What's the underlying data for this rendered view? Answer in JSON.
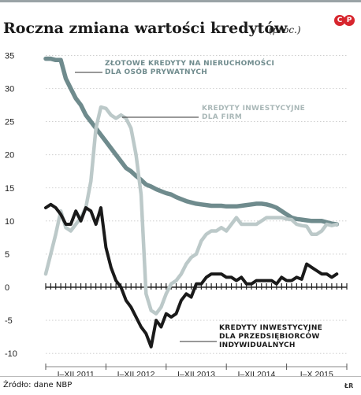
{
  "header": {
    "title": "Roczna zmiana wartości kredytów",
    "unit": "(proc.)",
    "logo": "CP",
    "logo_color": "#d7262e"
  },
  "footer": {
    "source": "Źródło: dane NBP",
    "initials": "ŁR"
  },
  "chart_data": {
    "type": "line",
    "ylim": [
      -12,
      36
    ],
    "y_ticks": [
      35,
      30,
      25,
      20,
      15,
      10,
      5,
      0,
      -5,
      -10
    ],
    "x_range": [
      0,
      60
    ],
    "x_tick_labels": [
      "I–XII 2011",
      "I–XII 2012",
      "I–XII 2013",
      "I–XII 2014",
      "I–X 2015"
    ],
    "grid": true,
    "series": [
      {
        "name": "Złotowe kredyty na nieruchomości dla osób prywatnych",
        "label_lines": [
          "Złotowe kredyty na nieruchomości",
          "dla osób prywatnych"
        ],
        "color": "#6f8b8d",
        "x": [
          0,
          1,
          2,
          3,
          4,
          5,
          6,
          7,
          8,
          9,
          10,
          11,
          12,
          13,
          14,
          15,
          16,
          17,
          18,
          19,
          20,
          21,
          22,
          23,
          24,
          25,
          26,
          27,
          28,
          29,
          30,
          31,
          32,
          33,
          34,
          35,
          36,
          37,
          38,
          39,
          40,
          41,
          42,
          43,
          44,
          45,
          46,
          47,
          48,
          49,
          50,
          51,
          52,
          53,
          54,
          55,
          56,
          57,
          58
        ],
        "values": [
          34.5,
          34.5,
          34.3,
          34.3,
          31.5,
          30.0,
          28.5,
          27.5,
          26.0,
          25.0,
          24.0,
          23.0,
          22.0,
          21.0,
          20.0,
          19.0,
          18.0,
          17.5,
          16.8,
          16.2,
          15.5,
          15.2,
          14.8,
          14.5,
          14.2,
          14.0,
          13.6,
          13.3,
          13.0,
          12.8,
          12.6,
          12.5,
          12.4,
          12.3,
          12.3,
          12.3,
          12.2,
          12.2,
          12.2,
          12.3,
          12.4,
          12.5,
          12.6,
          12.6,
          12.5,
          12.3,
          12.0,
          11.5,
          11.0,
          10.5,
          10.3,
          10.2,
          10.1,
          10.0,
          10.0,
          10.0,
          9.8,
          9.6,
          9.5
        ]
      },
      {
        "name": "Kredyty inwestycyjne dla firm",
        "label_lines": [
          "Kredyty inwestycyjne",
          "dla firm"
        ],
        "color": "#bcc9c9",
        "x": [
          0,
          1,
          2,
          3,
          4,
          5,
          6,
          7,
          8,
          9,
          10,
          11,
          12,
          13,
          14,
          15,
          16,
          17,
          18,
          19,
          20,
          21,
          22,
          23,
          24,
          25,
          26,
          27,
          28,
          29,
          30,
          31,
          32,
          33,
          34,
          35,
          36,
          37,
          38,
          39,
          40,
          41,
          42,
          43,
          44,
          45,
          46,
          47,
          48,
          49,
          50,
          51,
          52,
          53,
          54,
          55,
          56,
          57,
          58
        ],
        "values": [
          2.0,
          5.0,
          8.0,
          11.5,
          9.0,
          8.5,
          9.5,
          10.5,
          12.0,
          16.0,
          24.0,
          27.2,
          27.0,
          26.0,
          25.5,
          26.0,
          25.5,
          24.0,
          20.0,
          14.0,
          -1.0,
          -3.5,
          -4.0,
          -3.0,
          -1.0,
          0.5,
          1.0,
          2.0,
          3.5,
          4.5,
          5.0,
          7.0,
          8.0,
          8.5,
          8.5,
          9.0,
          8.5,
          9.5,
          10.5,
          9.5,
          9.5,
          9.5,
          9.5,
          10.0,
          10.5,
          10.5,
          10.5,
          10.5,
          10.3,
          10.2,
          9.5,
          9.3,
          9.2,
          8.0,
          8.0,
          8.5,
          9.5,
          9.3,
          9.5
        ]
      },
      {
        "name": "Kredyty inwestycyjne dla przedsiębiorców indywidualnych",
        "label_lines": [
          "Kredyty inwestycyjne",
          "dla przedsiębiorców",
          "indywidualnych"
        ],
        "color": "#1a1a1a",
        "x": [
          0,
          1,
          2,
          3,
          4,
          5,
          6,
          7,
          8,
          9,
          10,
          11,
          12,
          13,
          14,
          15,
          16,
          17,
          18,
          19,
          20,
          21,
          22,
          23,
          24,
          25,
          26,
          27,
          28,
          29,
          30,
          31,
          32,
          33,
          34,
          35,
          36,
          37,
          38,
          39,
          40,
          41,
          42,
          43,
          44,
          45,
          46,
          47,
          48,
          49,
          50,
          51,
          52,
          53,
          54,
          55,
          56,
          57,
          58
        ],
        "values": [
          12.0,
          12.5,
          12.0,
          11.0,
          9.5,
          9.5,
          11.5,
          10.0,
          12.0,
          11.5,
          9.5,
          12.0,
          6.0,
          3.0,
          1.0,
          0.0,
          -2.0,
          -3.0,
          -4.5,
          -6.0,
          -7.0,
          -9.0,
          -5.0,
          -6.0,
          -4.0,
          -4.5,
          -4.0,
          -2.0,
          -1.0,
          -1.5,
          0.5,
          0.5,
          1.5,
          2.0,
          2.0,
          2.0,
          1.5,
          1.5,
          1.0,
          1.5,
          0.5,
          0.5,
          1.0,
          1.0,
          1.0,
          1.0,
          0.5,
          1.5,
          1.0,
          1.0,
          1.5,
          1.2,
          3.5,
          3.0,
          2.5,
          2.0,
          2.0,
          1.5,
          2.0
        ]
      }
    ]
  }
}
